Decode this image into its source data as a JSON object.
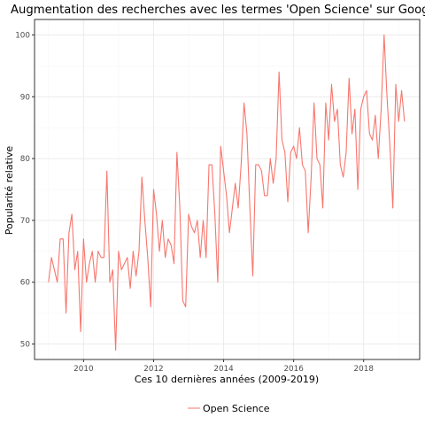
{
  "chart_data": {
    "type": "line",
    "title": "Augmentation des recherches avec les termes 'Open Science' sur Google",
    "xlabel": "Ces 10 dernières années (2009-2019)",
    "ylabel": "Popularité relative",
    "xlim": [
      2008.6,
      2019.6
    ],
    "ylim": [
      47.5,
      102.5
    ],
    "x_ticks": [
      "2010",
      "2012",
      "2014",
      "2016",
      "2018"
    ],
    "y_ticks": [
      "50",
      "60",
      "70",
      "80",
      "90",
      "100"
    ],
    "grid": true,
    "legend_position": "bottom",
    "colors": {
      "series": "#F8766D",
      "grid_major": "#ebebeb",
      "grid_minor": "#f5f5f5",
      "panel_border": "#333333",
      "tick_text": "#4d4d4d"
    },
    "series": [
      {
        "name": "Open Science",
        "x_start": "2009-01",
        "frequency": "monthly",
        "values": [
          60,
          64,
          62,
          60,
          67,
          67,
          55,
          68,
          71,
          62,
          65,
          52,
          67,
          60,
          63,
          65,
          60,
          65,
          64,
          64,
          78,
          60,
          62,
          49,
          65,
          62,
          63,
          64,
          59,
          65,
          61,
          65,
          77,
          70,
          64,
          56,
          75,
          71,
          65,
          70,
          64,
          67,
          66,
          63,
          81,
          72,
          57,
          56,
          71,
          69,
          68,
          70,
          64,
          70,
          64,
          79,
          79,
          71,
          60,
          82,
          78,
          74,
          68,
          72,
          76,
          72,
          79,
          89,
          84,
          72,
          61,
          79,
          79,
          78,
          74,
          74,
          80,
          76,
          80,
          94,
          83,
          81,
          73,
          81,
          82,
          80,
          85,
          79,
          78,
          68,
          77,
          89,
          80,
          79,
          72,
          89,
          83,
          92,
          86,
          88,
          79,
          77,
          81,
          93,
          84,
          88,
          75,
          88,
          90,
          91,
          84,
          83,
          87,
          80,
          88,
          100,
          90,
          82,
          72,
          92,
          86,
          91,
          86
        ]
      }
    ]
  }
}
